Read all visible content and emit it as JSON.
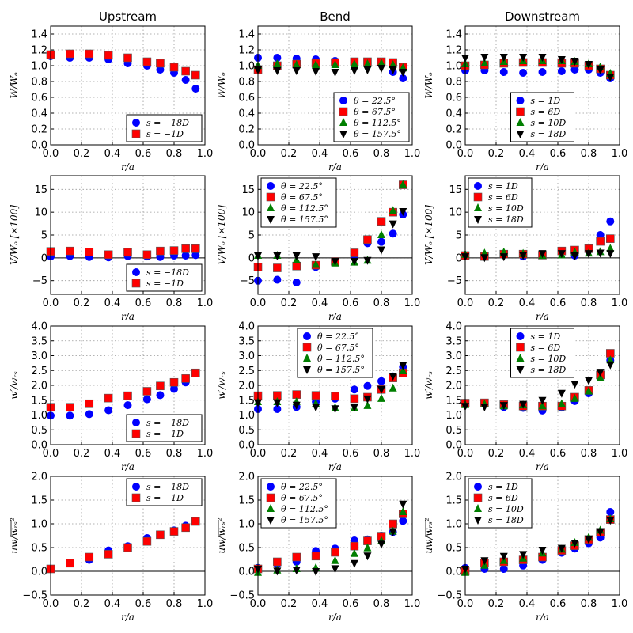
{
  "column_titles": [
    "Upstream",
    "Bend",
    "Downstream"
  ],
  "xlabel": "r/a",
  "ylabels": [
    "W/Wₒ",
    "V/Wₒ [×100]",
    "w′/wᵣₛ",
    "uw/wᵣₛ²"
  ],
  "marker_styles": [
    {
      "shape": "circle",
      "color": "#0000ff"
    },
    {
      "shape": "square",
      "color": "#ff0000"
    },
    {
      "shape": "triangle-up",
      "color": "#007f00"
    },
    {
      "shape": "triangle-down",
      "color": "#000000"
    }
  ],
  "row_axes": [
    {
      "ylim": [
        0,
        1.5
      ],
      "yticks": [
        "0.0",
        "0.2",
        "0.4",
        "0.6",
        "0.8",
        "1.0",
        "1.2",
        "1.4"
      ],
      "zero_line": false
    },
    {
      "ylim": [
        -8,
        18
      ],
      "yticks": [
        "−5",
        "0",
        "5",
        "10",
        "15"
      ],
      "zero_line": true
    },
    {
      "ylim": [
        0,
        4.0
      ],
      "yticks": [
        "0.0",
        "0.5",
        "1.0",
        "1.5",
        "2.0",
        "2.5",
        "3.0",
        "3.5",
        "4.0"
      ],
      "zero_line": false
    },
    {
      "ylim": [
        -0.5,
        2.0
      ],
      "yticks": [
        "−0.5",
        "0.0",
        "0.5",
        "1.0",
        "1.5",
        "2.0"
      ],
      "zero_line": true
    }
  ],
  "xaxis": {
    "xlim": [
      0,
      1.0
    ],
    "xticks": [
      "0.0",
      "0.2",
      "0.4",
      "0.6",
      "0.8",
      "1.0"
    ],
    "grid": true
  },
  "chart_data": [
    {
      "type": "scatter",
      "title": "Upstream",
      "ylabel": "W/Wₒ",
      "xlabel": "r/a",
      "legend": "lower-right",
      "x": [
        0,
        0.125,
        0.25,
        0.375,
        0.5,
        0.625,
        0.71,
        0.8,
        0.875,
        0.94
      ],
      "series": [
        {
          "name": "s = −18D",
          "values": [
            1.12,
            1.1,
            1.1,
            1.08,
            1.03,
            1.0,
            0.95,
            0.91,
            0.82,
            0.71
          ]
        },
        {
          "name": "s = −1D",
          "values": [
            1.14,
            1.15,
            1.15,
            1.13,
            1.1,
            1.05,
            1.03,
            0.98,
            0.93,
            0.88
          ]
        }
      ]
    },
    {
      "type": "scatter",
      "title": "Bend",
      "ylabel": "W/Wₒ",
      "xlabel": "r/a",
      "legend": "lower-right",
      "x": [
        0,
        0.125,
        0.25,
        0.375,
        0.5,
        0.625,
        0.71,
        0.8,
        0.875,
        0.94
      ],
      "series": [
        {
          "name": "θ = 22.5°",
          "values": [
            1.1,
            1.1,
            1.09,
            1.08,
            1.06,
            1.04,
            1.03,
            1.02,
            0.92,
            0.84
          ]
        },
        {
          "name": "θ = 67.5°",
          "values": [
            0.95,
            1.0,
            1.02,
            1.03,
            1.04,
            1.05,
            1.05,
            1.05,
            1.04,
            0.98
          ]
        },
        {
          "name": "θ = 112.5°",
          "values": [
            1.0,
            1.02,
            1.01,
            1.01,
            1.01,
            1.02,
            1.02,
            1.03,
            1.01,
            0.97
          ]
        },
        {
          "name": "θ = 157.5°",
          "values": [
            0.95,
            0.94,
            0.94,
            0.93,
            0.92,
            0.94,
            0.95,
            0.97,
            0.95,
            0.92
          ]
        }
      ]
    },
    {
      "type": "scatter",
      "title": "Downstream",
      "ylabel": "W/Wₒ",
      "xlabel": "r/a",
      "legend": "lower-center",
      "x": [
        0,
        0.125,
        0.25,
        0.375,
        0.5,
        0.625,
        0.71,
        0.8,
        0.875,
        0.94
      ],
      "series": [
        {
          "name": "s = 1D",
          "values": [
            0.94,
            0.94,
            0.92,
            0.91,
            0.92,
            0.93,
            0.95,
            0.95,
            0.91,
            0.84
          ]
        },
        {
          "name": "s = 6D",
          "values": [
            1.0,
            1.01,
            1.03,
            1.04,
            1.04,
            1.03,
            1.03,
            1.0,
            0.96,
            0.88
          ]
        },
        {
          "name": "s = 10D",
          "values": [
            1.02,
            1.03,
            1.05,
            1.06,
            1.06,
            1.06,
            1.05,
            1.02,
            0.98,
            0.9
          ]
        },
        {
          "name": "s = 18D",
          "values": [
            1.1,
            1.11,
            1.11,
            1.11,
            1.11,
            1.08,
            1.06,
            1.02,
            0.95,
            0.86
          ]
        }
      ]
    },
    {
      "type": "scatter",
      "title": "Upstream",
      "ylabel": "V/Wₒ [×100]",
      "xlabel": "r/a",
      "legend": "lower-right",
      "x": [
        0,
        0.125,
        0.25,
        0.375,
        0.5,
        0.625,
        0.71,
        0.8,
        0.875,
        0.94
      ],
      "series": [
        {
          "name": "s = −18D",
          "values": [
            0.3,
            0.4,
            0.2,
            0.1,
            0.4,
            0.3,
            0.2,
            0.5,
            0.5,
            0.6
          ]
        },
        {
          "name": "s = −1D",
          "values": [
            1.4,
            1.5,
            1.3,
            0.7,
            1.2,
            0.7,
            1.5,
            1.6,
            2.0,
            2.0
          ]
        }
      ]
    },
    {
      "type": "scatter",
      "title": "Bend",
      "ylabel": "V/Wₒ [×100]",
      "xlabel": "r/a",
      "legend": "upper-left",
      "x": [
        0,
        0.125,
        0.25,
        0.375,
        0.5,
        0.625,
        0.71,
        0.8,
        0.875,
        0.94
      ],
      "series": [
        {
          "name": "θ = 22.5°",
          "values": [
            -5.0,
            -4.8,
            -5.4,
            -2.0,
            -1.0,
            0.5,
            3.2,
            3.5,
            5.3,
            9.5
          ]
        },
        {
          "name": "θ = 67.5°",
          "values": [
            -2.0,
            -2.2,
            -1.8,
            -1.6,
            -0.8,
            1.1,
            4.0,
            8.0,
            10.0,
            16.0
          ]
        },
        {
          "name": "θ = 112.5°",
          "values": [
            0.5,
            0.5,
            -0.5,
            -1.5,
            -1.2,
            -1.0,
            -0.6,
            5.0,
            10.3,
            16.0
          ]
        },
        {
          "name": "θ = 157.5°",
          "values": [
            0.5,
            0.5,
            0.5,
            0.3,
            -0.7,
            -0.7,
            -0.5,
            1.8,
            7.5,
            10.2
          ]
        }
      ]
    },
    {
      "type": "scatter",
      "title": "Downstream",
      "ylabel": "V/Wₒ [×100]",
      "xlabel": "r/a",
      "legend": "upper-left",
      "x": [
        0,
        0.125,
        0.25,
        0.375,
        0.5,
        0.625,
        0.71,
        0.8,
        0.875,
        0.94
      ],
      "series": [
        {
          "name": "s = 1D",
          "values": [
            0.5,
            0.3,
            0.8,
            0.3,
            0.6,
            1.5,
            0.5,
            1.8,
            5.0,
            8.0
          ]
        },
        {
          "name": "s = 6D",
          "values": [
            0.5,
            0.3,
            0.8,
            0.8,
            0.6,
            1.5,
            1.7,
            2.0,
            3.6,
            4.2
          ]
        },
        {
          "name": "s = 10D",
          "values": [
            0.7,
            1.0,
            1.2,
            0.9,
            0.5,
            0.6,
            1.2,
            1.0,
            1.3,
            2.0
          ]
        },
        {
          "name": "s = 18D",
          "values": [
            0.3,
            0.1,
            0.3,
            0.6,
            1.0,
            1.0,
            0.5,
            1.0,
            1.1,
            1.0
          ]
        }
      ]
    },
    {
      "type": "scatter",
      "title": "Upstream",
      "ylabel": "w′/wᵣₛ",
      "xlabel": "r/a",
      "legend": "lower-right",
      "x": [
        0,
        0.125,
        0.25,
        0.375,
        0.5,
        0.625,
        0.71,
        0.8,
        0.875,
        0.94
      ],
      "series": [
        {
          "name": "s = −18D",
          "values": [
            0.98,
            0.98,
            1.03,
            1.16,
            1.33,
            1.53,
            1.67,
            1.88,
            2.1,
            2.4
          ]
        },
        {
          "name": "s = −1D",
          "values": [
            1.26,
            1.26,
            1.38,
            1.57,
            1.65,
            1.8,
            1.98,
            2.1,
            2.23,
            2.42
          ]
        }
      ]
    },
    {
      "type": "scatter",
      "title": "Bend",
      "ylabel": "w′/wᵣₛ",
      "xlabel": "r/a",
      "legend": "upper-center",
      "x": [
        0,
        0.125,
        0.25,
        0.375,
        0.5,
        0.625,
        0.71,
        0.8,
        0.875,
        0.94
      ],
      "series": [
        {
          "name": "θ = 22.5°",
          "values": [
            1.2,
            1.2,
            1.27,
            1.45,
            1.55,
            1.86,
            1.98,
            2.14,
            2.3,
            2.62
          ]
        },
        {
          "name": "θ = 67.5°",
          "values": [
            1.65,
            1.66,
            1.69,
            1.66,
            1.63,
            1.55,
            1.6,
            1.86,
            2.25,
            2.42
          ]
        },
        {
          "name": "θ = 112.5°",
          "values": [
            1.44,
            1.44,
            1.44,
            1.38,
            1.24,
            1.24,
            1.31,
            1.55,
            1.9,
            2.48
          ]
        },
        {
          "name": "θ = 157.5°",
          "values": [
            1.42,
            1.42,
            1.34,
            1.27,
            1.22,
            1.27,
            1.55,
            1.87,
            2.32,
            2.68
          ]
        }
      ]
    },
    {
      "type": "scatter",
      "title": "Downstream",
      "ylabel": "w′/wᵣₛ",
      "xlabel": "r/a",
      "legend": "upper-center",
      "x": [
        0,
        0.125,
        0.25,
        0.375,
        0.5,
        0.625,
        0.71,
        0.8,
        0.875,
        0.94
      ],
      "series": [
        {
          "name": "s = 1D",
          "values": [
            1.37,
            1.38,
            1.27,
            1.24,
            1.15,
            1.25,
            1.47,
            1.73,
            2.27,
            2.85
          ]
        },
        {
          "name": "s = 6D",
          "values": [
            1.4,
            1.41,
            1.35,
            1.3,
            1.3,
            1.3,
            1.6,
            1.83,
            2.35,
            3.08
          ]
        },
        {
          "name": "s = 10D",
          "values": [
            1.34,
            1.36,
            1.3,
            1.33,
            1.3,
            1.37,
            1.55,
            1.8,
            2.25,
            2.85
          ]
        },
        {
          "name": "s = 18D",
          "values": [
            1.3,
            1.28,
            1.33,
            1.37,
            1.5,
            1.74,
            2.05,
            2.17,
            2.45,
            2.7
          ]
        }
      ]
    },
    {
      "type": "scatter",
      "title": "Upstream",
      "ylabel": "uw/wᵣₛ²",
      "xlabel": "r/a",
      "legend": "upper-right",
      "x": [
        0,
        0.125,
        0.25,
        0.375,
        0.5,
        0.625,
        0.71,
        0.8,
        0.875,
        0.94
      ],
      "series": [
        {
          "name": "s = −18D",
          "values": [
            0.05,
            0.18,
            0.24,
            0.44,
            0.53,
            0.7,
            0.77,
            0.86,
            0.96,
            1.05
          ]
        },
        {
          "name": "s = −1D",
          "values": [
            0.05,
            0.17,
            0.3,
            0.36,
            0.5,
            0.63,
            0.77,
            0.84,
            0.92,
            1.05
          ]
        }
      ]
    },
    {
      "type": "scatter",
      "title": "Bend",
      "ylabel": "uw/wᵣₛ²",
      "xlabel": "r/a",
      "legend": "upper-left",
      "x": [
        0,
        0.125,
        0.25,
        0.375,
        0.5,
        0.625,
        0.71,
        0.8,
        0.875,
        0.94
      ],
      "series": [
        {
          "name": "θ = 22.5°",
          "values": [
            0.07,
            0.15,
            0.2,
            0.43,
            0.48,
            0.65,
            0.67,
            0.75,
            0.83,
            1.06
          ]
        },
        {
          "name": "θ = 67.5°",
          "values": [
            0.05,
            0.2,
            0.3,
            0.32,
            0.4,
            0.53,
            0.64,
            0.74,
            1.0,
            1.21
          ]
        },
        {
          "name": "θ = 112.5°",
          "values": [
            -0.03,
            0.02,
            0.05,
            0.07,
            0.22,
            0.37,
            0.49,
            0.64,
            0.84,
            1.25
          ]
        },
        {
          "name": "θ = 157.5°",
          "values": [
            0.05,
            0.01,
            0.03,
            0.0,
            0.06,
            0.17,
            0.33,
            0.58,
            0.84,
            1.42
          ]
        }
      ]
    },
    {
      "type": "scatter",
      "title": "Downstream",
      "ylabel": "uw/wᵣₛ²",
      "xlabel": "r/a",
      "legend": "upper-left",
      "x": [
        0,
        0.125,
        0.25,
        0.375,
        0.5,
        0.625,
        0.71,
        0.8,
        0.875,
        0.94
      ],
      "series": [
        {
          "name": "s = 1D",
          "values": [
            0.07,
            0.05,
            0.05,
            0.12,
            0.24,
            0.39,
            0.48,
            0.59,
            0.71,
            1.25
          ]
        },
        {
          "name": "s = 6D",
          "values": [
            0.0,
            0.17,
            0.2,
            0.24,
            0.3,
            0.44,
            0.54,
            0.67,
            0.82,
            1.09
          ]
        },
        {
          "name": "s = 10D",
          "values": [
            -0.03,
            0.12,
            0.22,
            0.27,
            0.38,
            0.46,
            0.6,
            0.71,
            0.86,
            1.1
          ]
        },
        {
          "name": "s = 18D",
          "values": [
            0.05,
            0.23,
            0.32,
            0.36,
            0.45,
            0.49,
            0.6,
            0.68,
            0.84,
            1.08
          ]
        }
      ]
    }
  ]
}
